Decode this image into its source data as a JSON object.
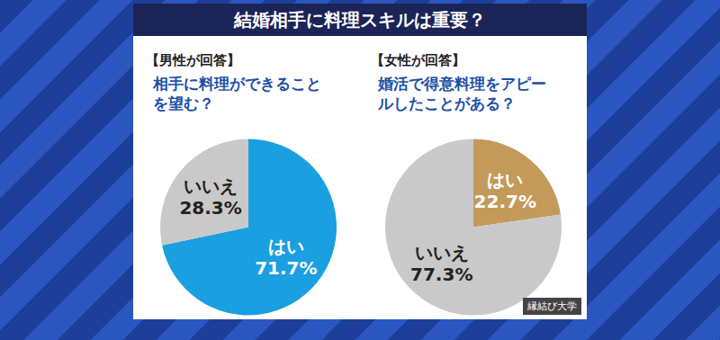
{
  "title": "結婚相手に料理スキルは重要？",
  "source": "縁結び大学",
  "chart_data": [
    {
      "type": "pie",
      "subtitle": "【男性が回答】",
      "title": "相手に料理ができることを望む？",
      "categories": [
        "はい",
        "いいえ"
      ],
      "values": [
        71.7,
        28.3
      ],
      "value_labels": [
        "71.7%",
        "28.3%"
      ],
      "colors": [
        "#1a9fe0",
        "#c9c9c9"
      ],
      "data_labels": true
    },
    {
      "type": "pie",
      "subtitle": "【女性が回答】",
      "title": "婚活で得意料理をアピールしたことがある？",
      "categories": [
        "はい",
        "いいえ"
      ],
      "values": [
        22.7,
        77.3
      ],
      "value_labels": [
        "22.7%",
        "77.3%"
      ],
      "colors": [
        "#c49a5a",
        "#c9c9c9"
      ],
      "data_labels": true
    }
  ]
}
